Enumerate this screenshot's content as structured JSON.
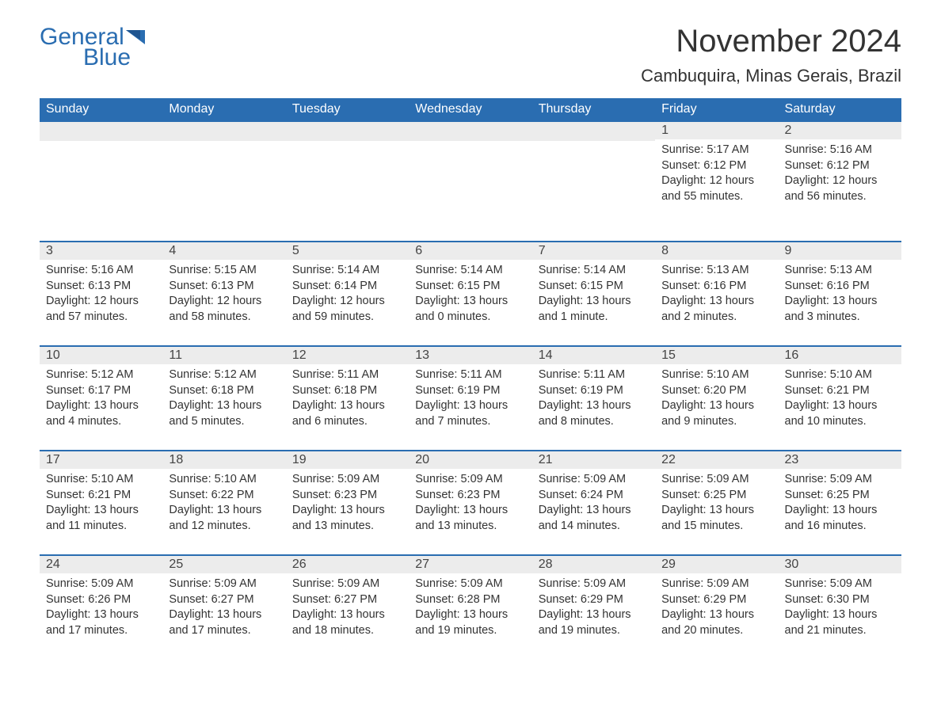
{
  "logo": {
    "text_general": "General",
    "text_blue": "Blue",
    "brand_color": "#2a6db1"
  },
  "title": "November 2024",
  "location": "Cambuquira, Minas Gerais, Brazil",
  "colors": {
    "header_bg": "#2a6db1",
    "header_text": "#ffffff",
    "daynum_bg": "#ececec",
    "text_color": "#333333",
    "background": "#ffffff"
  },
  "fonts": {
    "title_size": 40,
    "location_size": 22,
    "day_header_size": 16,
    "day_number_size": 16,
    "body_size": 14.5
  },
  "day_headers": [
    "Sunday",
    "Monday",
    "Tuesday",
    "Wednesday",
    "Thursday",
    "Friday",
    "Saturday"
  ],
  "weeks": [
    [
      {
        "empty": true
      },
      {
        "empty": true
      },
      {
        "empty": true
      },
      {
        "empty": true
      },
      {
        "empty": true
      },
      {
        "n": "1",
        "sunrise": "Sunrise: 5:17 AM",
        "sunset": "Sunset: 6:12 PM",
        "daylight": "Daylight: 12 hours and 55 minutes."
      },
      {
        "n": "2",
        "sunrise": "Sunrise: 5:16 AM",
        "sunset": "Sunset: 6:12 PM",
        "daylight": "Daylight: 12 hours and 56 minutes."
      }
    ],
    [
      {
        "n": "3",
        "sunrise": "Sunrise: 5:16 AM",
        "sunset": "Sunset: 6:13 PM",
        "daylight": "Daylight: 12 hours and 57 minutes."
      },
      {
        "n": "4",
        "sunrise": "Sunrise: 5:15 AM",
        "sunset": "Sunset: 6:13 PM",
        "daylight": "Daylight: 12 hours and 58 minutes."
      },
      {
        "n": "5",
        "sunrise": "Sunrise: 5:14 AM",
        "sunset": "Sunset: 6:14 PM",
        "daylight": "Daylight: 12 hours and 59 minutes."
      },
      {
        "n": "6",
        "sunrise": "Sunrise: 5:14 AM",
        "sunset": "Sunset: 6:15 PM",
        "daylight": "Daylight: 13 hours and 0 minutes."
      },
      {
        "n": "7",
        "sunrise": "Sunrise: 5:14 AM",
        "sunset": "Sunset: 6:15 PM",
        "daylight": "Daylight: 13 hours and 1 minute."
      },
      {
        "n": "8",
        "sunrise": "Sunrise: 5:13 AM",
        "sunset": "Sunset: 6:16 PM",
        "daylight": "Daylight: 13 hours and 2 minutes."
      },
      {
        "n": "9",
        "sunrise": "Sunrise: 5:13 AM",
        "sunset": "Sunset: 6:16 PM",
        "daylight": "Daylight: 13 hours and 3 minutes."
      }
    ],
    [
      {
        "n": "10",
        "sunrise": "Sunrise: 5:12 AM",
        "sunset": "Sunset: 6:17 PM",
        "daylight": "Daylight: 13 hours and 4 minutes."
      },
      {
        "n": "11",
        "sunrise": "Sunrise: 5:12 AM",
        "sunset": "Sunset: 6:18 PM",
        "daylight": "Daylight: 13 hours and 5 minutes."
      },
      {
        "n": "12",
        "sunrise": "Sunrise: 5:11 AM",
        "sunset": "Sunset: 6:18 PM",
        "daylight": "Daylight: 13 hours and 6 minutes."
      },
      {
        "n": "13",
        "sunrise": "Sunrise: 5:11 AM",
        "sunset": "Sunset: 6:19 PM",
        "daylight": "Daylight: 13 hours and 7 minutes."
      },
      {
        "n": "14",
        "sunrise": "Sunrise: 5:11 AM",
        "sunset": "Sunset: 6:19 PM",
        "daylight": "Daylight: 13 hours and 8 minutes."
      },
      {
        "n": "15",
        "sunrise": "Sunrise: 5:10 AM",
        "sunset": "Sunset: 6:20 PM",
        "daylight": "Daylight: 13 hours and 9 minutes."
      },
      {
        "n": "16",
        "sunrise": "Sunrise: 5:10 AM",
        "sunset": "Sunset: 6:21 PM",
        "daylight": "Daylight: 13 hours and 10 minutes."
      }
    ],
    [
      {
        "n": "17",
        "sunrise": "Sunrise: 5:10 AM",
        "sunset": "Sunset: 6:21 PM",
        "daylight": "Daylight: 13 hours and 11 minutes."
      },
      {
        "n": "18",
        "sunrise": "Sunrise: 5:10 AM",
        "sunset": "Sunset: 6:22 PM",
        "daylight": "Daylight: 13 hours and 12 minutes."
      },
      {
        "n": "19",
        "sunrise": "Sunrise: 5:09 AM",
        "sunset": "Sunset: 6:23 PM",
        "daylight": "Daylight: 13 hours and 13 minutes."
      },
      {
        "n": "20",
        "sunrise": "Sunrise: 5:09 AM",
        "sunset": "Sunset: 6:23 PM",
        "daylight": "Daylight: 13 hours and 13 minutes."
      },
      {
        "n": "21",
        "sunrise": "Sunrise: 5:09 AM",
        "sunset": "Sunset: 6:24 PM",
        "daylight": "Daylight: 13 hours and 14 minutes."
      },
      {
        "n": "22",
        "sunrise": "Sunrise: 5:09 AM",
        "sunset": "Sunset: 6:25 PM",
        "daylight": "Daylight: 13 hours and 15 minutes."
      },
      {
        "n": "23",
        "sunrise": "Sunrise: 5:09 AM",
        "sunset": "Sunset: 6:25 PM",
        "daylight": "Daylight: 13 hours and 16 minutes."
      }
    ],
    [
      {
        "n": "24",
        "sunrise": "Sunrise: 5:09 AM",
        "sunset": "Sunset: 6:26 PM",
        "daylight": "Daylight: 13 hours and 17 minutes."
      },
      {
        "n": "25",
        "sunrise": "Sunrise: 5:09 AM",
        "sunset": "Sunset: 6:27 PM",
        "daylight": "Daylight: 13 hours and 17 minutes."
      },
      {
        "n": "26",
        "sunrise": "Sunrise: 5:09 AM",
        "sunset": "Sunset: 6:27 PM",
        "daylight": "Daylight: 13 hours and 18 minutes."
      },
      {
        "n": "27",
        "sunrise": "Sunrise: 5:09 AM",
        "sunset": "Sunset: 6:28 PM",
        "daylight": "Daylight: 13 hours and 19 minutes."
      },
      {
        "n": "28",
        "sunrise": "Sunrise: 5:09 AM",
        "sunset": "Sunset: 6:29 PM",
        "daylight": "Daylight: 13 hours and 19 minutes."
      },
      {
        "n": "29",
        "sunrise": "Sunrise: 5:09 AM",
        "sunset": "Sunset: 6:29 PM",
        "daylight": "Daylight: 13 hours and 20 minutes."
      },
      {
        "n": "30",
        "sunrise": "Sunrise: 5:09 AM",
        "sunset": "Sunset: 6:30 PM",
        "daylight": "Daylight: 13 hours and 21 minutes."
      }
    ]
  ]
}
